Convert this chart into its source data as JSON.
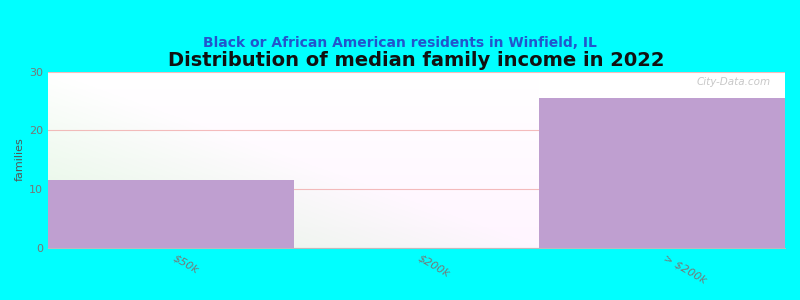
{
  "title": "Distribution of median family income in 2022",
  "subtitle": "Black or African American residents in Winfield, IL",
  "categories": [
    "$50k",
    "$200k",
    "> $200k"
  ],
  "values": [
    11.5,
    0,
    25.5
  ],
  "bar_color": "#bf9fd0",
  "background_color": "#00ffff",
  "plot_bg_left": "#e8f8e8",
  "plot_bg_right": "#ffffff",
  "ylabel": "families",
  "ylim": [
    0,
    30
  ],
  "yticks": [
    0,
    10,
    20,
    30
  ],
  "title_fontsize": 14,
  "subtitle_fontsize": 10,
  "subtitle_color": "#2255cc",
  "watermark": "City-Data.com",
  "grid_color": "#f0a0a0",
  "grid_alpha": 0.7,
  "tick_label_color": "#777777"
}
